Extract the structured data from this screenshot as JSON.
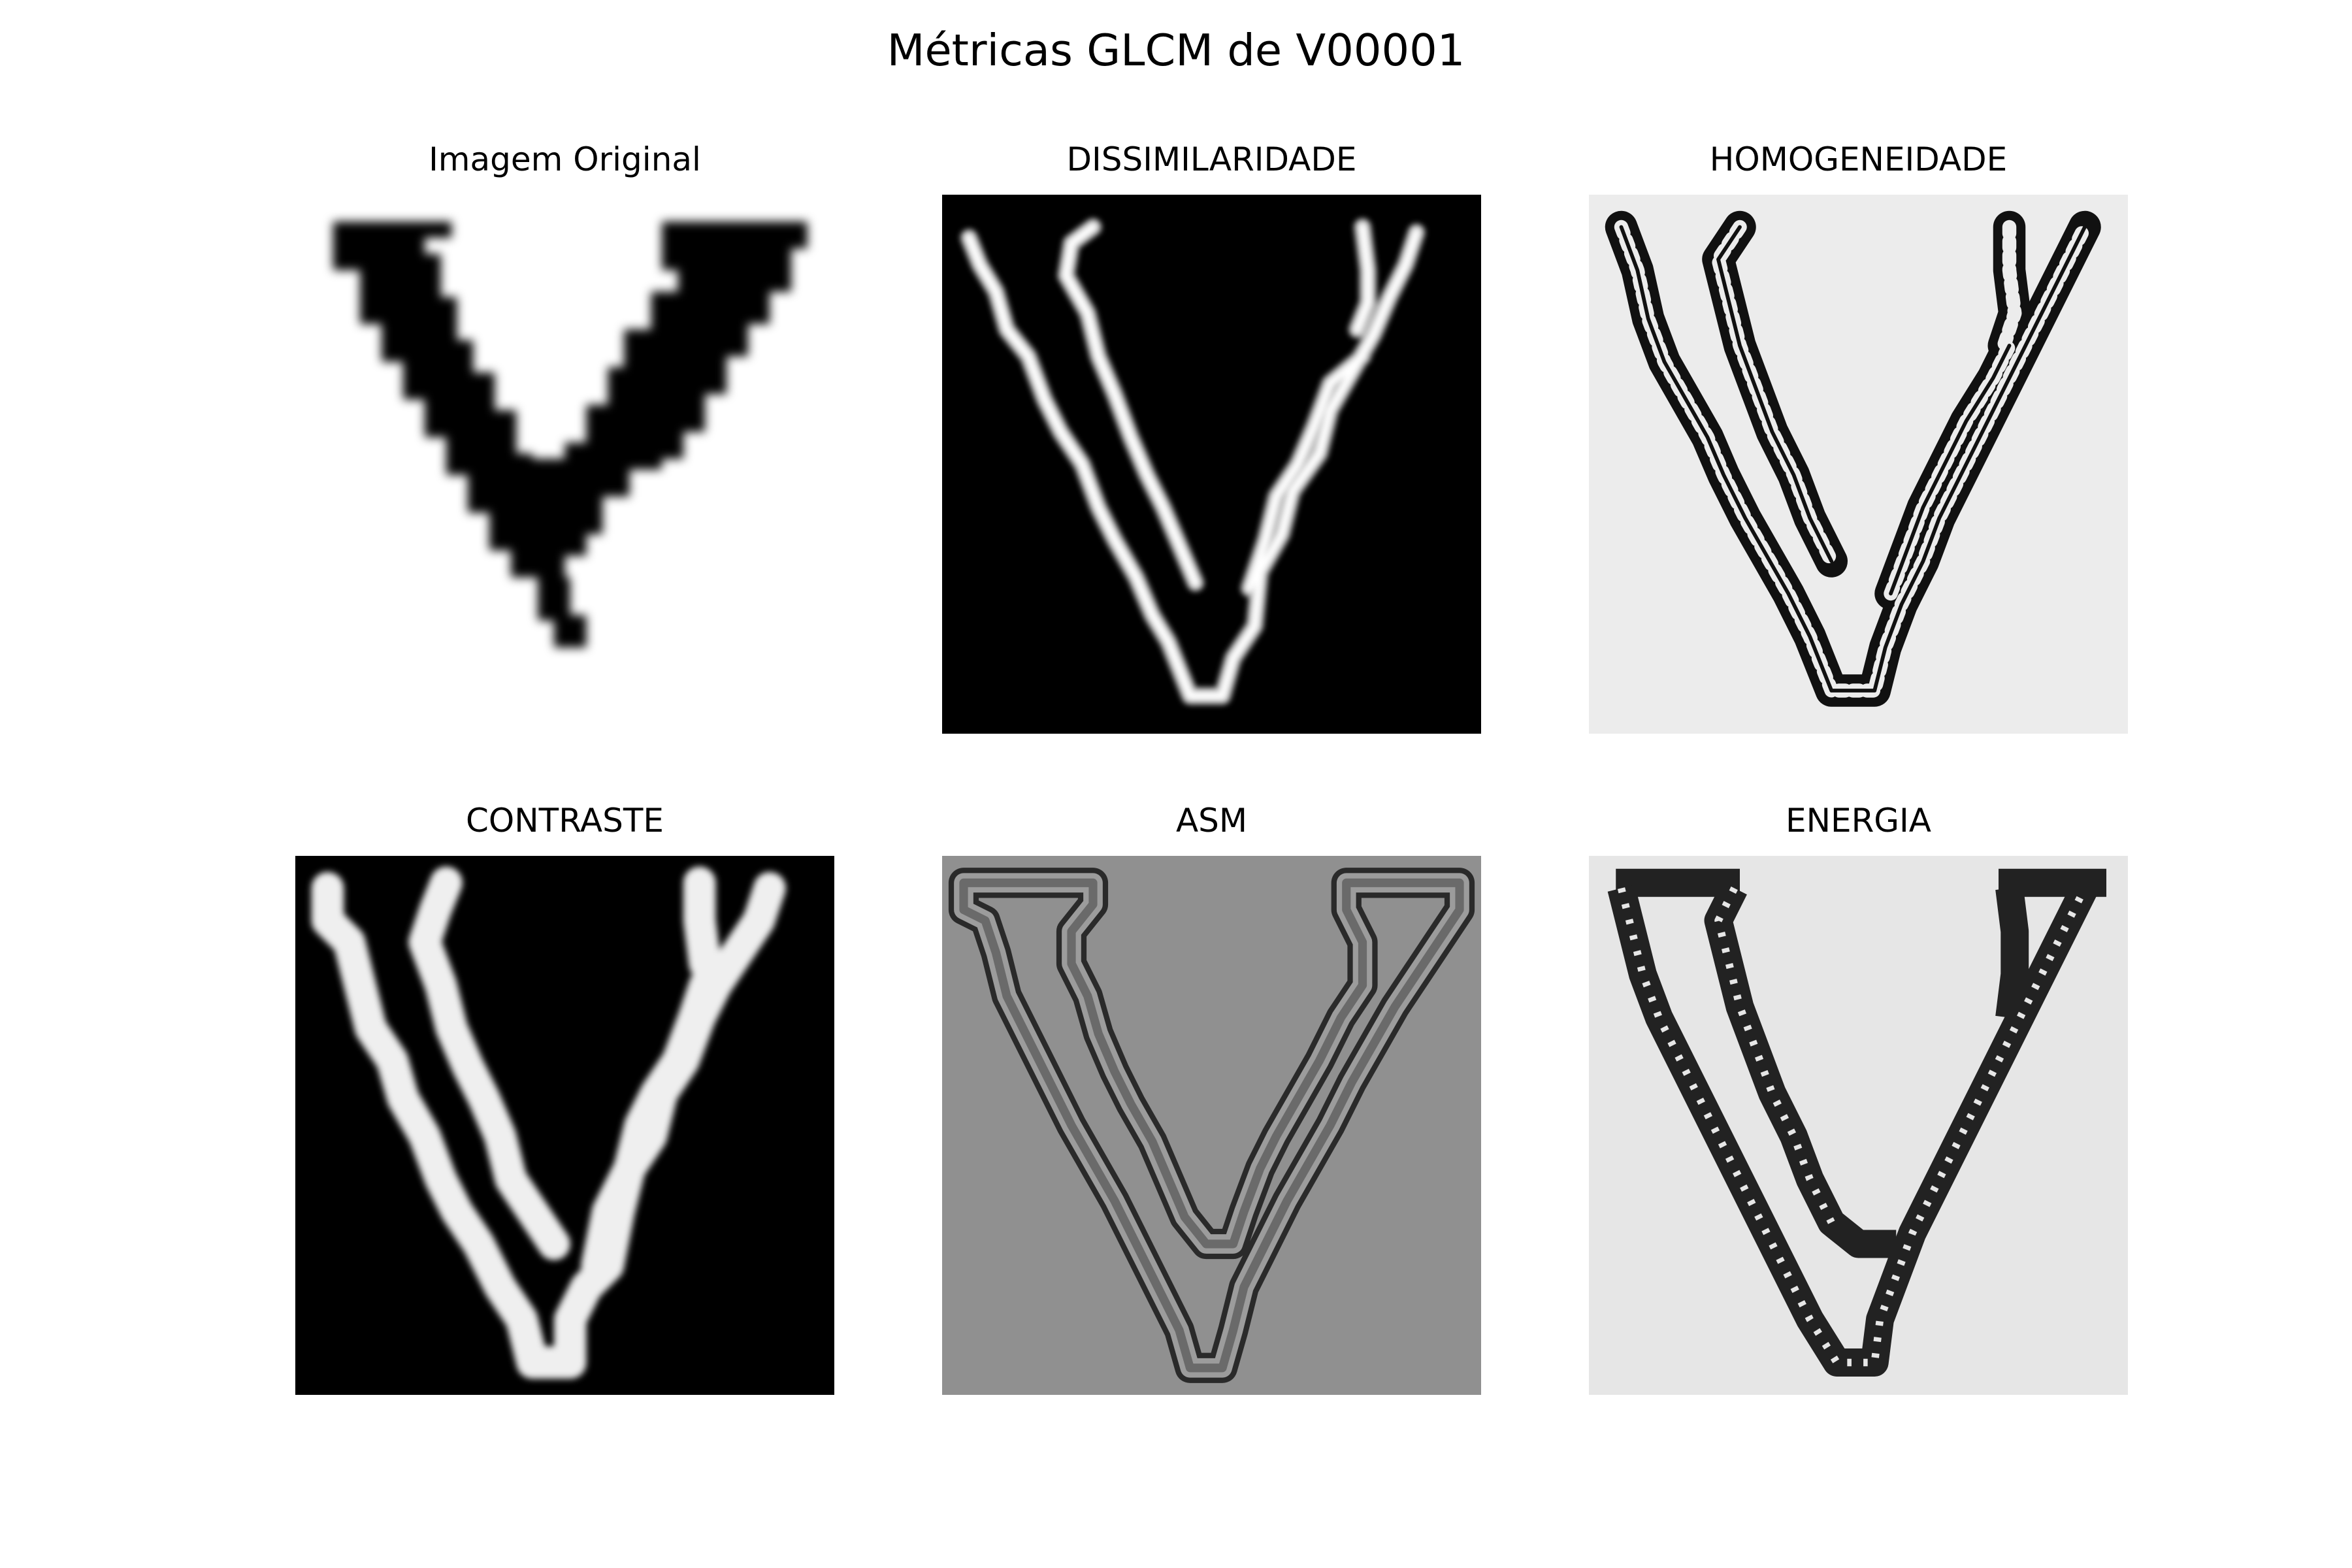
{
  "figure": {
    "title": "Métricas GLCM de V00001"
  },
  "panels": {
    "original": {
      "title": "Imagem Original",
      "background": "#ffffff"
    },
    "dissim": {
      "title": "DISSIMILARIDADE",
      "background": "#000000"
    },
    "homog": {
      "title": "HOMOGENEIDADE",
      "background": "#ececec"
    },
    "contraste": {
      "title": "CONTRASTE",
      "background": "#000000"
    },
    "asm": {
      "title": "ASM",
      "background": "#909090"
    },
    "energia": {
      "title": "ENERGIA",
      "background": "#e6e6e6"
    }
  }
}
